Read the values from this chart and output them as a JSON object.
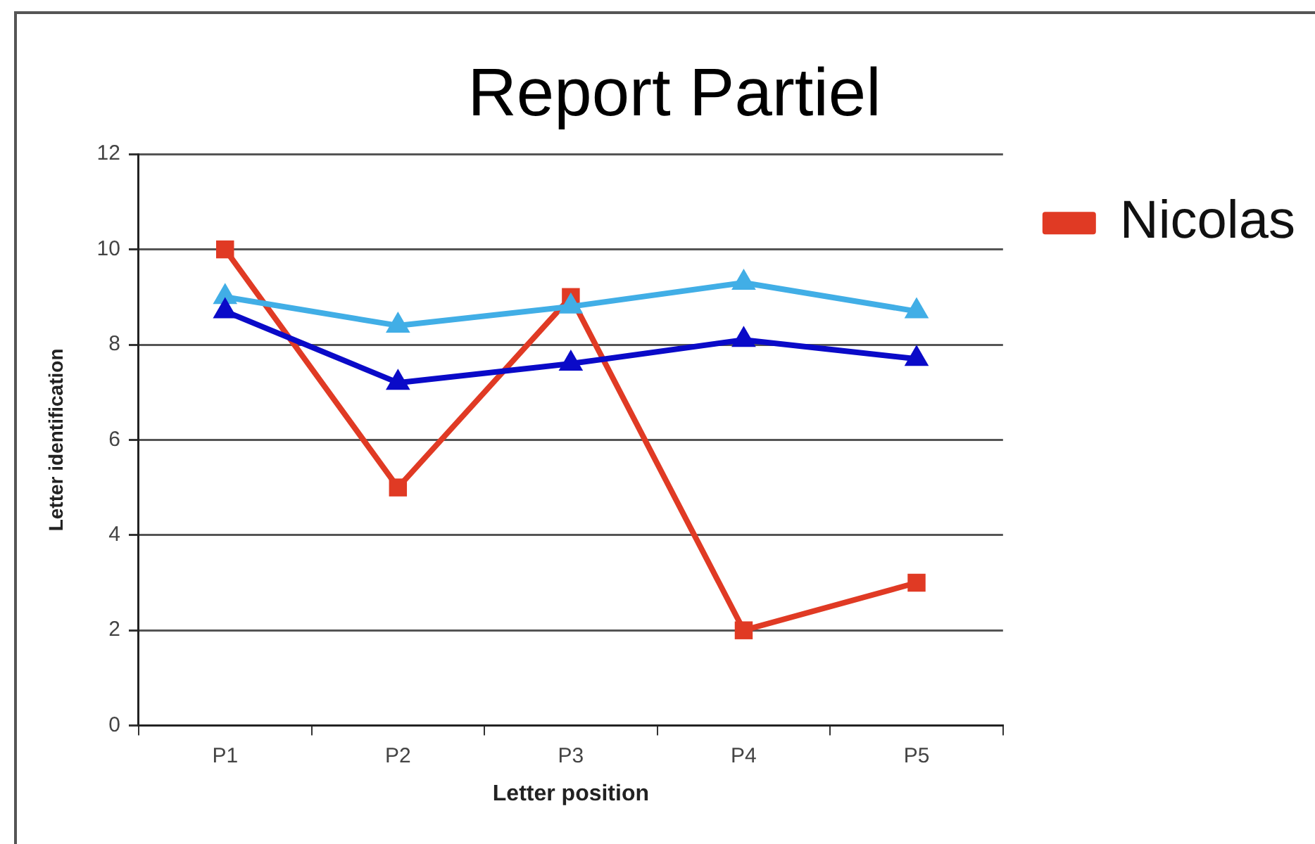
{
  "chart_data": {
    "type": "line",
    "title": "Report Partiel",
    "xlabel": "Letter position",
    "ylabel": "Letter identification",
    "categories": [
      "P1",
      "P2",
      "P3",
      "P4",
      "P5"
    ],
    "series": [
      {
        "name": "Nicolas",
        "color": "#e03a24",
        "marker": "square",
        "values": [
          10,
          5,
          9,
          2,
          3
        ]
      },
      {
        "color": "#41aee6",
        "marker": "triangle",
        "values": [
          9.0,
          8.4,
          8.8,
          9.3,
          8.7
        ]
      },
      {
        "color": "#0a0ac8",
        "marker": "triangle",
        "values": [
          8.7,
          7.2,
          7.6,
          8.1,
          7.7
        ]
      }
    ],
    "ylim": [
      0,
      12
    ],
    "yticks": [
      0,
      2,
      4,
      6,
      8,
      10,
      12
    ],
    "grid": "y",
    "legend": "top right",
    "line_style": "solid"
  }
}
